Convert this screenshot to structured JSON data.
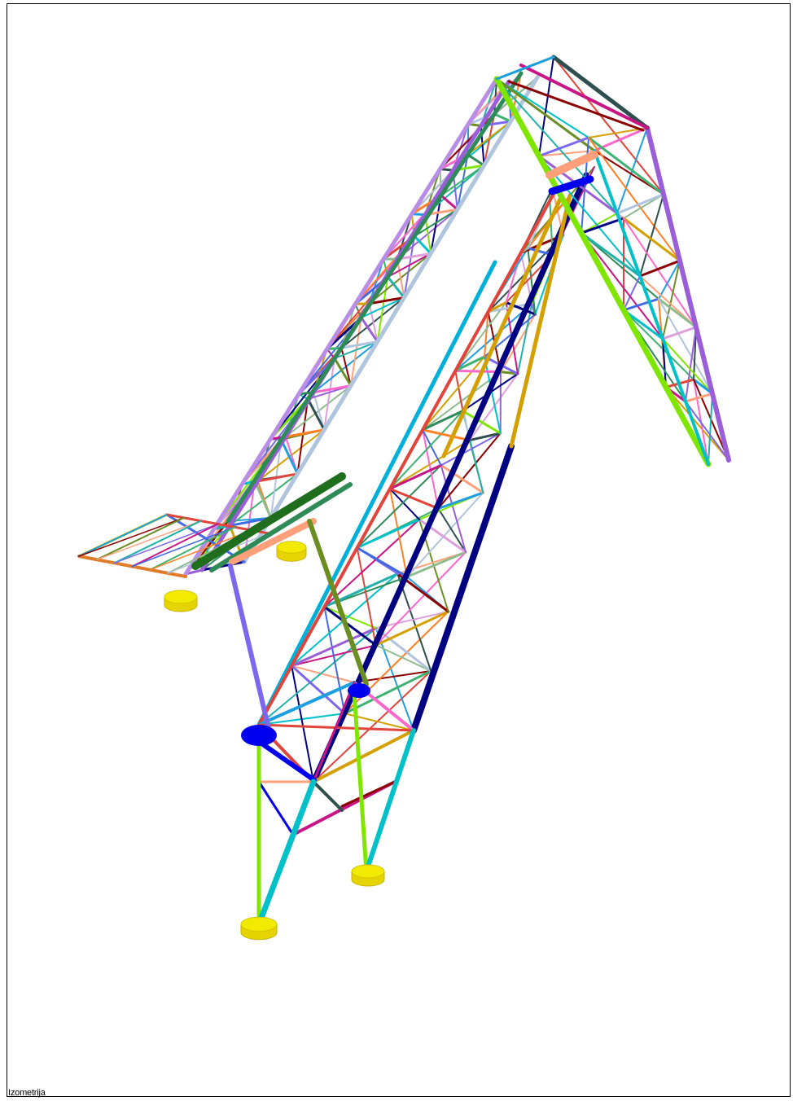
{
  "view_label": "Izometrija",
  "colors": {
    "background": "#ffffff",
    "frame": "#000000",
    "supports": "#f2ea00",
    "hinges": "#0000ee",
    "member_palette": [
      "#9a5fd8",
      "#7fe600",
      "#00c0c8",
      "#000080",
      "#2e8b57",
      "#e0443a",
      "#d4a000",
      "#ff66cc",
      "#1e9fe0",
      "#8b0000",
      "#6b8e23",
      "#ffa07a",
      "#20b2aa",
      "#7b68ee",
      "#c71585",
      "#4169e1",
      "#3cb371",
      "#ff7f24",
      "#8fbc8f",
      "#b0c4de",
      "#2f4f4f",
      "#dda0dd"
    ]
  }
}
